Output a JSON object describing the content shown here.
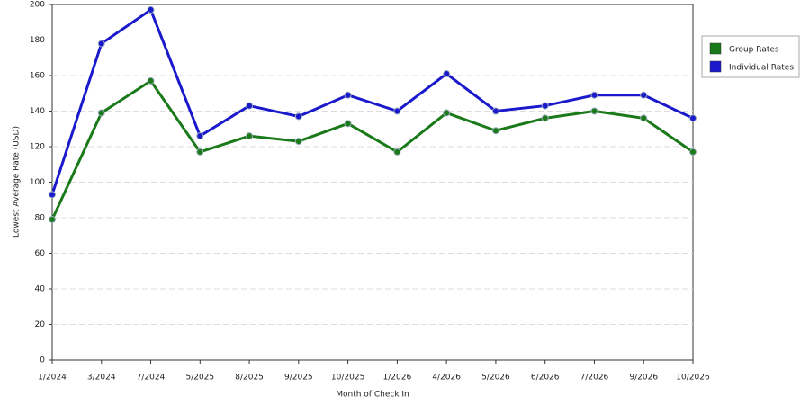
{
  "chart_data": {
    "type": "line",
    "x_label": "Month of Check In",
    "y_label": "Lowest Average Rate (USD)",
    "categories": [
      "1/2024",
      "3/2024",
      "7/2024",
      "5/2025",
      "8/2025",
      "9/2025",
      "10/2025",
      "1/2026",
      "4/2026",
      "5/2026",
      "6/2026",
      "7/2026",
      "9/2026",
      "10/2026"
    ],
    "series": [
      {
        "name": "Group Rates",
        "color": "#1a7a1a",
        "values": [
          79,
          139,
          157,
          117,
          126,
          123,
          133,
          117,
          139,
          129,
          136,
          140,
          136,
          117
        ]
      },
      {
        "name": "Individual Rates",
        "color": "#1a1acc",
        "values": [
          93,
          178,
          197,
          126,
          143,
          137,
          149,
          140,
          161,
          140,
          143,
          149,
          149,
          136
        ]
      }
    ],
    "ylim": [
      0,
      200
    ],
    "yticks": [
      0,
      20,
      40,
      60,
      80,
      100,
      120,
      140,
      160,
      180,
      200
    ],
    "grid": true,
    "legend": "right"
  }
}
